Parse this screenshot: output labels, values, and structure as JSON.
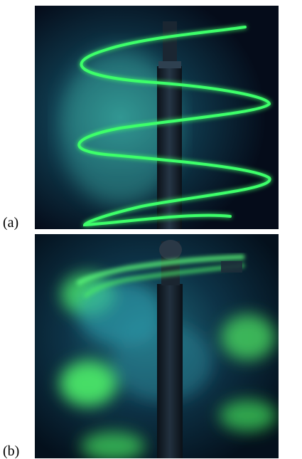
{
  "figure": {
    "panels": [
      {
        "label": "(a)",
        "description_icon": "vortex-laser-sheet-photo"
      },
      {
        "label": "(b)",
        "description_icon": "dispersed-dye-photo"
      }
    ],
    "colors": {
      "background": "#06101f",
      "dye_green": "#3dff6a",
      "glow_teal": "#2fa4a0",
      "rod": "#1b2733"
    }
  }
}
